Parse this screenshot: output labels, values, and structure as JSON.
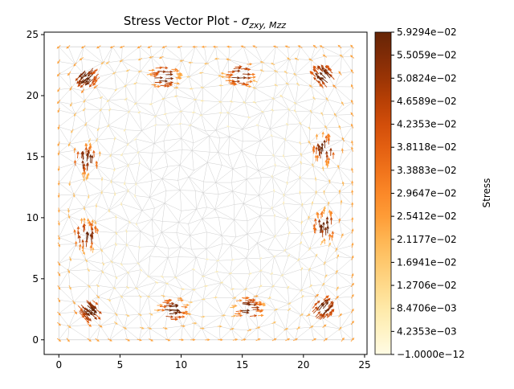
{
  "chart_data": {
    "type": "vector-field",
    "title": "Stress Vector Plot - σzxy,Mzz",
    "title_main": "Stress Vector Plot - ",
    "title_symbol": "σ",
    "title_subscript": "zxy, Mzz",
    "xlabel": "",
    "ylabel": "",
    "xlim": [
      -1.2,
      25.2
    ],
    "ylim": [
      -1.2,
      25.2
    ],
    "xticks": [
      0,
      5,
      10,
      15,
      20,
      25
    ],
    "yticks": [
      0,
      5,
      10,
      15,
      20,
      25
    ],
    "domain": {
      "x": [
        0,
        24
      ],
      "y": [
        0,
        24
      ]
    },
    "colorbar": {
      "label": "Stress",
      "min": -1e-12,
      "max": 0.059294,
      "ticks": [
        -1e-12,
        0.0042353,
        0.0084706,
        0.012706,
        0.016941,
        0.021177,
        0.025412,
        0.029647,
        0.033883,
        0.038118,
        0.042353,
        0.046589,
        0.050824,
        0.055059,
        0.059294
      ],
      "tick_labels": [
        "−1.0000e−12",
        "4.2353e−03",
        "8.4706e−03",
        "1.2706e−02",
        "1.6941e−02",
        "2.1177e−02",
        "2.5412e−02",
        "2.9647e−02",
        "3.3883e−02",
        "3.8118e−02",
        "4.2353e−02",
        "4.6589e−02",
        "5.0824e−02",
        "5.5059e−02",
        "5.9294e−02"
      ],
      "colors": [
        "#fffbe4",
        "#fff3c5",
        "#fee9a8",
        "#fed98a",
        "#fec86e",
        "#feb552",
        "#fe9c37",
        "#fb8828",
        "#f0731b",
        "#e35f11",
        "#d24e0a",
        "#b84005",
        "#9a3405",
        "#7f2b06",
        "#662506"
      ]
    },
    "hotspots": [
      {
        "x": 2.3,
        "y": 14.7,
        "orient": "vertical"
      },
      {
        "x": 2.3,
        "y": 8.5,
        "orient": "vertical"
      },
      {
        "x": 21.7,
        "y": 15.6,
        "orient": "vertical"
      },
      {
        "x": 21.7,
        "y": 9.3,
        "orient": "vertical"
      },
      {
        "x": 8.6,
        "y": 21.5,
        "orient": "horizontal"
      },
      {
        "x": 14.8,
        "y": 21.6,
        "orient": "horizontal"
      },
      {
        "x": 9.3,
        "y": 2.5,
        "orient": "horizontal"
      },
      {
        "x": 15.5,
        "y": 2.6,
        "orient": "horizontal"
      },
      {
        "x": 2.3,
        "y": 21.5,
        "orient": "diagonal"
      },
      {
        "x": 21.6,
        "y": 21.6,
        "orient": "diagonal"
      },
      {
        "x": 2.6,
        "y": 2.4,
        "orient": "diagonal"
      },
      {
        "x": 21.6,
        "y": 2.6,
        "orient": "diagonal"
      }
    ]
  }
}
